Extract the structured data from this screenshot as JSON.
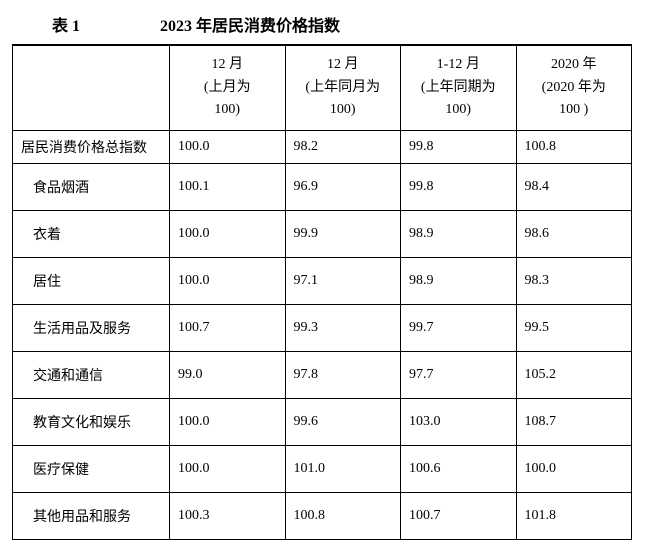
{
  "title_label": "表 1",
  "title_text": "2023 年居民消费价格指数",
  "columns": [
    "",
    "12 月\n(上月为\n100)",
    "12 月\n(上年同月为\n100)",
    "1-12 月\n(上年同期为\n100)",
    "2020 年\n(2020 年为\n100 )"
  ],
  "rows": [
    {
      "label": "居民消费价格总指数",
      "v1": "100.0",
      "v2": "98.2",
      "v3": "99.8",
      "v4": "100.8",
      "indent": false
    },
    {
      "label": "食品烟酒",
      "v1": "100.1",
      "v2": "96.9",
      "v3": "99.8",
      "v4": "98.4",
      "indent": true
    },
    {
      "label": "衣着",
      "v1": "100.0",
      "v2": "99.9",
      "v3": "98.9",
      "v4": "98.6",
      "indent": true
    },
    {
      "label": "居住",
      "v1": "100.0",
      "v2": "97.1",
      "v3": "98.9",
      "v4": "98.3",
      "indent": true
    },
    {
      "label": "生活用品及服务",
      "v1": "100.7",
      "v2": "99.3",
      "v3": "99.7",
      "v4": "99.5",
      "indent": true
    },
    {
      "label": "交通和通信",
      "v1": "99.0",
      "v2": "97.8",
      "v3": "97.7",
      "v4": "105.2",
      "indent": true
    },
    {
      "label": "教育文化和娱乐",
      "v1": "100.0",
      "v2": "99.6",
      "v3": "103.0",
      "v4": "108.7",
      "indent": true
    },
    {
      "label": "医疗保健",
      "v1": "100.0",
      "v2": "101.0",
      "v3": "100.6",
      "v4": "100.0",
      "indent": true
    },
    {
      "label": "其他用品和服务",
      "v1": "100.3",
      "v2": "100.8",
      "v3": "100.7",
      "v4": "101.8",
      "indent": true
    }
  ]
}
